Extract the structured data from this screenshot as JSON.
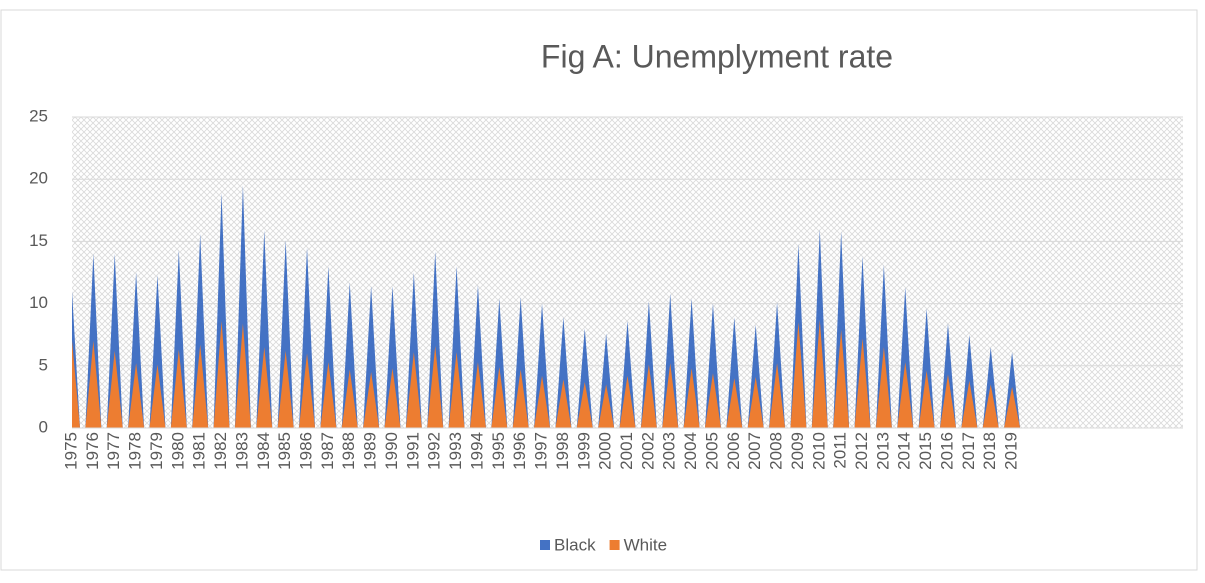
{
  "chart_data": {
    "type": "area-spike",
    "title": "Fig A: Unemplyment rate",
    "categories": [
      "1975",
      "1976",
      "1977",
      "1978",
      "1979",
      "1980",
      "1981",
      "1982",
      "1983",
      "1984",
      "1985",
      "1986",
      "1987",
      "1988",
      "1989",
      "1990",
      "1991",
      "1992",
      "1993",
      "1994",
      "1995",
      "1996",
      "1997",
      "1998",
      "1999",
      "2000",
      "2001",
      "2002",
      "2003",
      "2004",
      "2005",
      "2006",
      "2007",
      "2008",
      "2009",
      "2010",
      "2011",
      "2012",
      "2013",
      "2014",
      "2015",
      "2016",
      "2017",
      "2018",
      "2019",
      null,
      null,
      null,
      null,
      null,
      null,
      null
    ],
    "series": [
      {
        "name": "Black",
        "color": "#4472c4",
        "values": [
          11,
          14,
          14,
          12.5,
          12.3,
          14.3,
          15.6,
          18.9,
          19.5,
          15.9,
          15.1,
          14.5,
          13,
          11.7,
          11.4,
          11.4,
          12.5,
          14.2,
          13,
          11.5,
          10.4,
          10.5,
          10,
          8.9,
          8,
          7.6,
          8.6,
          10.2,
          10.8,
          10.4,
          10,
          8.9,
          8.3,
          10.1,
          14.8,
          16,
          15.8,
          13.8,
          13.1,
          11.3,
          9.6,
          8.4,
          7.5,
          6.5,
          6.1,
          null,
          null,
          null,
          null,
          null,
          null,
          null
        ]
      },
      {
        "name": "White",
        "color": "#ed7d31",
        "values": [
          7,
          7,
          6.2,
          5.2,
          5.1,
          6.3,
          6.7,
          8.6,
          8.4,
          6.5,
          6.2,
          6,
          5.3,
          4.7,
          4.5,
          4.8,
          6.1,
          6.6,
          6.1,
          5.3,
          4.9,
          4.7,
          4.2,
          3.9,
          3.7,
          3.5,
          4.2,
          5.1,
          5.2,
          4.8,
          4.4,
          4,
          4.1,
          5.2,
          8.5,
          8.7,
          7.9,
          7.2,
          6.5,
          5.3,
          4.6,
          4.3,
          3.8,
          3.5,
          3.3,
          null,
          null,
          null,
          null,
          null,
          null,
          null
        ]
      }
    ],
    "ylim": [
      0,
      25
    ],
    "yticks": [
      0,
      5,
      10,
      15,
      20,
      25
    ],
    "grid": true
  }
}
